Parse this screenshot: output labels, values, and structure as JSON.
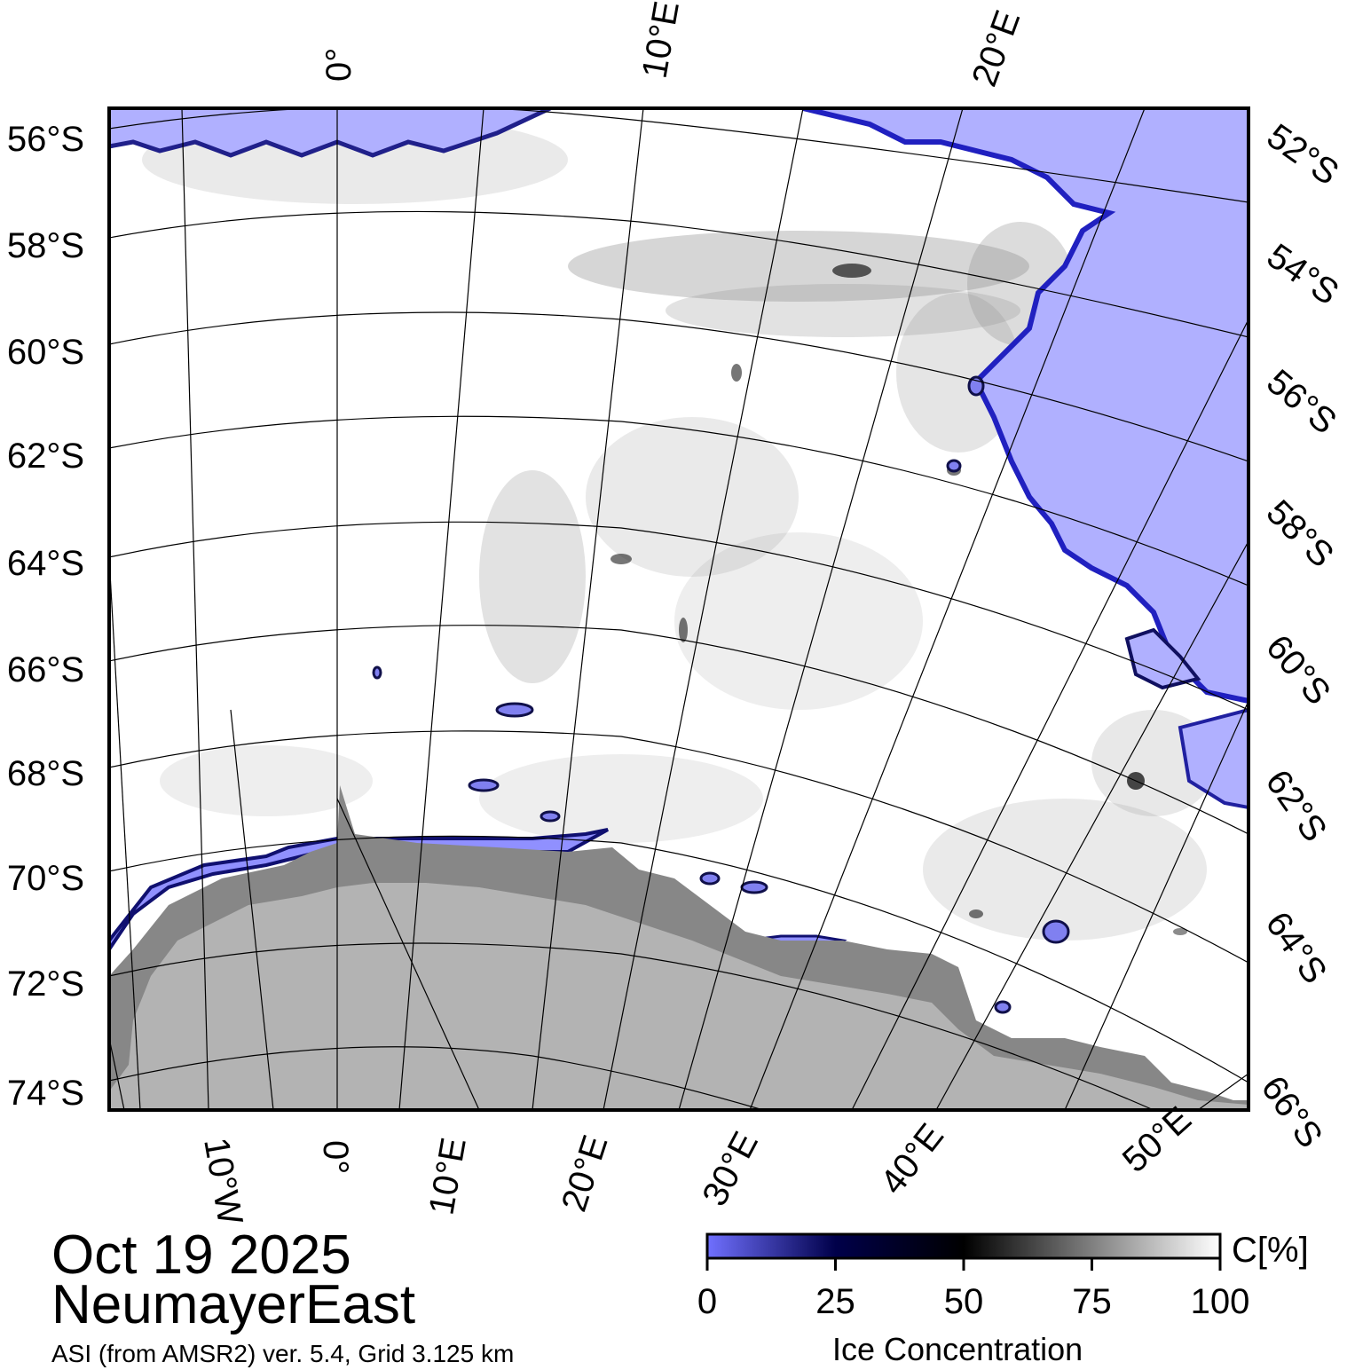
{
  "date": "Oct 19 2025",
  "region": "NeumayerEast",
  "source": "ASI (from AMSR2) ver. 5.4,  Grid 3.125 km",
  "colors": {
    "open_water": "#b0b0ff",
    "ice_full": "#ffffff",
    "ice_mid": "#000000",
    "ice_low": "#00004a",
    "land": "#b3b3b3",
    "ice_shelf": "#878787"
  },
  "map": {
    "lat_labels_left": [
      "56°S",
      "58°S",
      "60°S",
      "62°S",
      "64°S",
      "66°S",
      "68°S",
      "70°S",
      "72°S",
      "74°S"
    ],
    "lat_labels_right": [
      "52°S",
      "54°S",
      "56°S",
      "58°S",
      "60°S",
      "62°S",
      "64°S",
      "66°S"
    ],
    "lon_labels_top": [
      "0°",
      "10°E",
      "20°E"
    ],
    "lon_labels_bottom": [
      "10°W",
      "0°",
      "10°E",
      "20°E",
      "30°E",
      "40°E",
      "50°E"
    ]
  },
  "colorbar": {
    "title": "Ice Concentration",
    "unit": "C[%]",
    "ticks": [
      "0",
      "25",
      "50",
      "75",
      "100"
    ],
    "gradient": [
      "#7070ff",
      "#00004a",
      "#000000",
      "#ffffff"
    ]
  }
}
